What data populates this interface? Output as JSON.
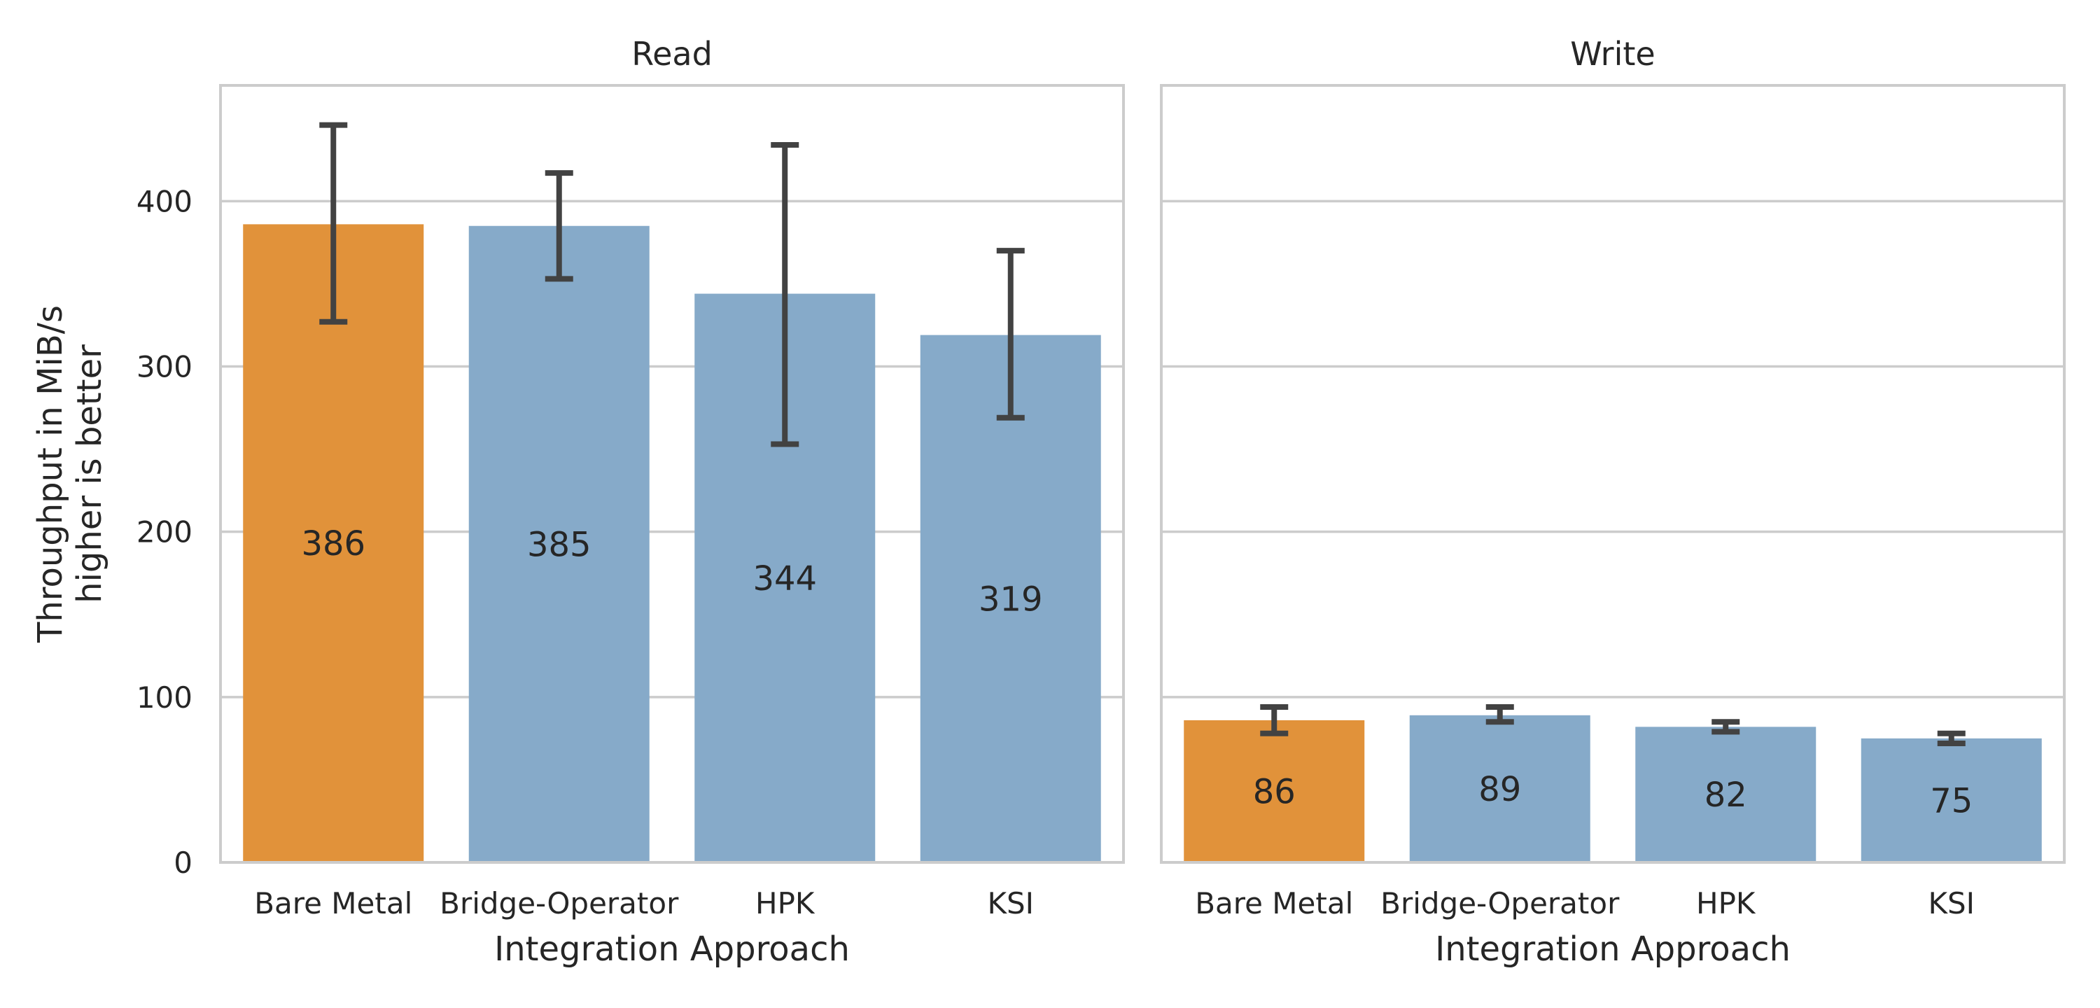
{
  "chart_data": {
    "type": "bar",
    "ylabel_lines": [
      "Throughput in MiB/s",
      "higher is better"
    ],
    "ylim": [
      0,
      470
    ],
    "yticks": [
      0,
      100,
      200,
      300,
      400
    ],
    "grid": true,
    "colors": {
      "highlight": "#e1923a",
      "default": "#86aac9",
      "error_bar": "#424242",
      "grid": "#cccccc",
      "text": "#262626"
    },
    "panels": [
      {
        "title": "Read",
        "xlabel": "Integration Approach",
        "categories": [
          "Bare Metal",
          "Bridge-Operator",
          "HPK",
          "KSI"
        ],
        "values": [
          386,
          385,
          344,
          319
        ],
        "value_labels": [
          "386",
          "385",
          "344",
          "319"
        ],
        "error_low": [
          327,
          353,
          253,
          269
        ],
        "error_high": [
          446,
          417,
          434,
          370
        ],
        "highlight": [
          true,
          false,
          false,
          false
        ]
      },
      {
        "title": "Write",
        "xlabel": "Integration Approach",
        "categories": [
          "Bare Metal",
          "Bridge-Operator",
          "HPK",
          "KSI"
        ],
        "values": [
          86,
          89,
          82,
          75
        ],
        "value_labels": [
          "86",
          "89",
          "82",
          "75"
        ],
        "error_low": [
          78,
          85,
          79,
          72
        ],
        "error_high": [
          94,
          94,
          85,
          78
        ],
        "highlight": [
          true,
          false,
          false,
          false
        ]
      }
    ]
  }
}
